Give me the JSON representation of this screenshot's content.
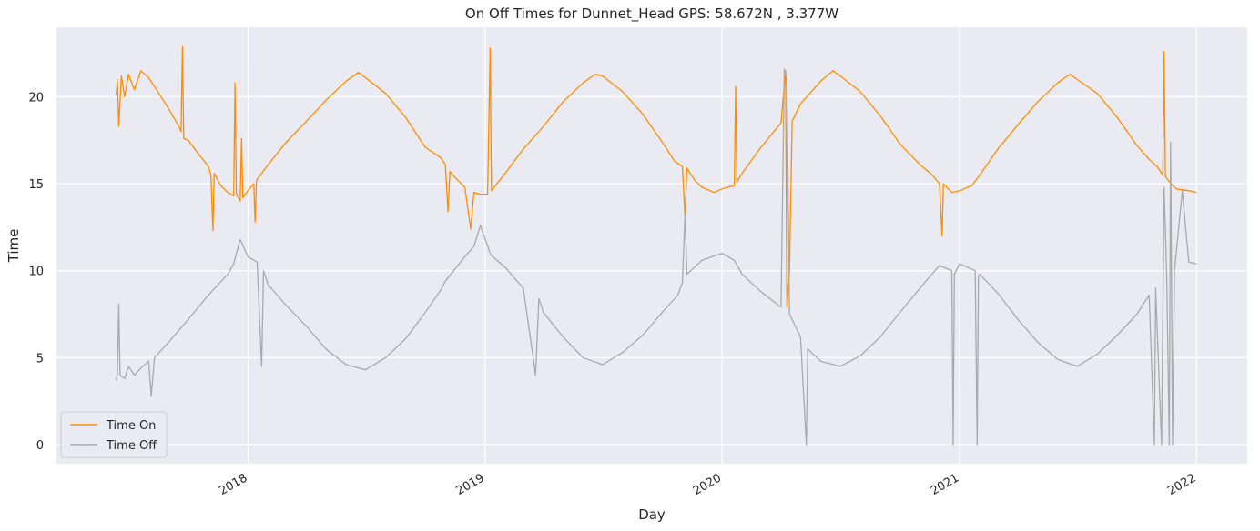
{
  "chart_data": {
    "type": "line",
    "title": "On Off Times for Dunnet_Head  GPS: 58.672N , 3.377W",
    "xlabel": "Day",
    "ylabel": "Time",
    "xlim": [
      "2017-03-12",
      "2022-03-20"
    ],
    "ylim": [
      -1.1,
      24.0
    ],
    "xticks": [
      {
        "date": "2018-01-01",
        "label": "2018"
      },
      {
        "date": "2019-01-01",
        "label": "2019"
      },
      {
        "date": "2020-01-01",
        "label": "2020"
      },
      {
        "date": "2021-01-01",
        "label": "2021"
      },
      {
        "date": "2022-01-01",
        "label": "2022"
      }
    ],
    "yticks": [
      0,
      5,
      10,
      15,
      20
    ],
    "grid": true,
    "legend_position": "bottom-left",
    "colors": {
      "background": "#eaeaf2",
      "grid": "#ffffff"
    },
    "series": [
      {
        "name": "Time On",
        "color": "#ff8c00",
        "points": [
          [
            "2017-06-12",
            20.1
          ],
          [
            "2017-06-14",
            21.0
          ],
          [
            "2017-06-16",
            18.3
          ],
          [
            "2017-06-20",
            21.2
          ],
          [
            "2017-06-25",
            20.0
          ],
          [
            "2017-07-01",
            21.3
          ],
          [
            "2017-07-10",
            20.4
          ],
          [
            "2017-07-20",
            21.5
          ],
          [
            "2017-08-01",
            21.1
          ],
          [
            "2017-08-15",
            20.3
          ],
          [
            "2017-09-01",
            19.3
          ],
          [
            "2017-09-15",
            18.4
          ],
          [
            "2017-09-20",
            18.0
          ],
          [
            "2017-09-22",
            22.9
          ],
          [
            "2017-09-24",
            17.6
          ],
          [
            "2017-10-01",
            17.5
          ],
          [
            "2017-10-15",
            16.8
          ],
          [
            "2017-11-01",
            16.0
          ],
          [
            "2017-11-05",
            15.5
          ],
          [
            "2017-11-08",
            12.3
          ],
          [
            "2017-11-10",
            15.6
          ],
          [
            "2017-11-20",
            14.9
          ],
          [
            "2017-12-01",
            14.5
          ],
          [
            "2017-12-10",
            14.3
          ],
          [
            "2017-12-12",
            20.8
          ],
          [
            "2017-12-14",
            14.4
          ],
          [
            "2017-12-20",
            14.0
          ],
          [
            "2017-12-22",
            17.6
          ],
          [
            "2017-12-24",
            14.2
          ],
          [
            "2018-01-01",
            14.6
          ],
          [
            "2018-01-10",
            15.0
          ],
          [
            "2018-01-12",
            12.8
          ],
          [
            "2018-01-14",
            15.2
          ],
          [
            "2018-02-01",
            16.1
          ],
          [
            "2018-03-01",
            17.4
          ],
          [
            "2018-04-01",
            18.6
          ],
          [
            "2018-05-01",
            19.8
          ],
          [
            "2018-06-01",
            20.9
          ],
          [
            "2018-06-20",
            21.4
          ],
          [
            "2018-07-01",
            21.1
          ],
          [
            "2018-08-01",
            20.2
          ],
          [
            "2018-09-01",
            18.8
          ],
          [
            "2018-10-01",
            17.1
          ],
          [
            "2018-10-25",
            16.5
          ],
          [
            "2018-11-01",
            16.1
          ],
          [
            "2018-11-05",
            13.4
          ],
          [
            "2018-11-08",
            15.7
          ],
          [
            "2018-11-20",
            15.2
          ],
          [
            "2018-12-01",
            14.8
          ],
          [
            "2018-12-10",
            12.4
          ],
          [
            "2018-12-15",
            14.5
          ],
          [
            "2018-12-25",
            14.4
          ],
          [
            "2019-01-05",
            14.4
          ],
          [
            "2019-01-09",
            22.8
          ],
          [
            "2019-01-11",
            14.6
          ],
          [
            "2019-02-01",
            15.6
          ],
          [
            "2019-03-01",
            17.0
          ],
          [
            "2019-04-01",
            18.3
          ],
          [
            "2019-05-01",
            19.7
          ],
          [
            "2019-06-01",
            20.8
          ],
          [
            "2019-06-20",
            21.3
          ],
          [
            "2019-07-01",
            21.2
          ],
          [
            "2019-08-01",
            20.3
          ],
          [
            "2019-09-01",
            19.0
          ],
          [
            "2019-10-01",
            17.4
          ],
          [
            "2019-10-20",
            16.3
          ],
          [
            "2019-11-01",
            16.0
          ],
          [
            "2019-11-05",
            13.1
          ],
          [
            "2019-11-08",
            15.9
          ],
          [
            "2019-11-20",
            15.2
          ],
          [
            "2019-12-01",
            14.8
          ],
          [
            "2019-12-20",
            14.5
          ],
          [
            "2020-01-01",
            14.7
          ],
          [
            "2020-01-20",
            14.9
          ],
          [
            "2020-01-22",
            20.6
          ],
          [
            "2020-01-24",
            15.1
          ],
          [
            "2020-02-01",
            15.6
          ],
          [
            "2020-03-01",
            17.1
          ],
          [
            "2020-04-01",
            18.5
          ],
          [
            "2020-04-08",
            21.5
          ],
          [
            "2020-04-10",
            7.9
          ],
          [
            "2020-04-14",
            10.0
          ],
          [
            "2020-04-18",
            18.6
          ],
          [
            "2020-05-01",
            19.6
          ],
          [
            "2020-06-01",
            20.9
          ],
          [
            "2020-06-20",
            21.5
          ],
          [
            "2020-07-01",
            21.2
          ],
          [
            "2020-08-01",
            20.3
          ],
          [
            "2020-09-01",
            18.9
          ],
          [
            "2020-10-01",
            17.3
          ],
          [
            "2020-11-01",
            16.1
          ],
          [
            "2020-11-20",
            15.5
          ],
          [
            "2020-12-01",
            15.0
          ],
          [
            "2020-12-05",
            12.0
          ],
          [
            "2020-12-07",
            15.0
          ],
          [
            "2020-12-20",
            14.5
          ],
          [
            "2021-01-01",
            14.6
          ],
          [
            "2021-01-20",
            14.9
          ],
          [
            "2021-02-01",
            15.5
          ],
          [
            "2021-03-01",
            17.0
          ],
          [
            "2021-04-01",
            18.4
          ],
          [
            "2021-05-01",
            19.7
          ],
          [
            "2021-06-01",
            20.8
          ],
          [
            "2021-06-20",
            21.3
          ],
          [
            "2021-07-01",
            21.0
          ],
          [
            "2021-08-01",
            20.2
          ],
          [
            "2021-09-01",
            18.8
          ],
          [
            "2021-10-01",
            17.2
          ],
          [
            "2021-10-20",
            16.4
          ],
          [
            "2021-11-01",
            16.0
          ],
          [
            "2021-11-10",
            15.5
          ],
          [
            "2021-11-12",
            22.6
          ],
          [
            "2021-11-14",
            15.4
          ],
          [
            "2021-11-25",
            14.9
          ],
          [
            "2021-12-01",
            14.7
          ],
          [
            "2021-12-20",
            14.6
          ],
          [
            "2022-01-01",
            14.5
          ]
        ]
      },
      {
        "name": "Time Off",
        "color": "#a9a9a9",
        "points": [
          [
            "2017-06-12",
            3.7
          ],
          [
            "2017-06-14",
            4.1
          ],
          [
            "2017-06-16",
            8.1
          ],
          [
            "2017-06-18",
            4.0
          ],
          [
            "2017-06-25",
            3.8
          ],
          [
            "2017-07-01",
            4.5
          ],
          [
            "2017-07-10",
            4.0
          ],
          [
            "2017-07-20",
            4.4
          ],
          [
            "2017-08-01",
            4.8
          ],
          [
            "2017-08-05",
            2.8
          ],
          [
            "2017-08-10",
            5.0
          ],
          [
            "2017-09-01",
            5.9
          ],
          [
            "2017-10-01",
            7.2
          ],
          [
            "2017-11-01",
            8.6
          ],
          [
            "2017-12-01",
            9.8
          ],
          [
            "2017-12-10",
            10.4
          ],
          [
            "2017-12-20",
            11.8
          ],
          [
            "2018-01-01",
            10.8
          ],
          [
            "2018-01-15",
            10.5
          ],
          [
            "2018-01-22",
            4.5
          ],
          [
            "2018-01-25",
            10.0
          ],
          [
            "2018-02-01",
            9.2
          ],
          [
            "2018-03-01",
            8.0
          ],
          [
            "2018-04-01",
            6.8
          ],
          [
            "2018-05-01",
            5.5
          ],
          [
            "2018-06-01",
            4.6
          ],
          [
            "2018-07-01",
            4.3
          ],
          [
            "2018-08-01",
            5.0
          ],
          [
            "2018-09-01",
            6.1
          ],
          [
            "2018-10-01",
            7.6
          ],
          [
            "2018-10-25",
            8.9
          ],
          [
            "2018-11-01",
            9.4
          ],
          [
            "2018-12-01",
            10.8
          ],
          [
            "2018-12-15",
            11.4
          ],
          [
            "2018-12-25",
            12.6
          ],
          [
            "2019-01-10",
            10.9
          ],
          [
            "2019-02-01",
            10.2
          ],
          [
            "2019-03-01",
            9.0
          ],
          [
            "2019-03-20",
            4.0
          ],
          [
            "2019-03-25",
            8.4
          ],
          [
            "2019-04-01",
            7.6
          ],
          [
            "2019-05-01",
            6.2
          ],
          [
            "2019-06-01",
            5.0
          ],
          [
            "2019-07-01",
            4.6
          ],
          [
            "2019-08-01",
            5.3
          ],
          [
            "2019-09-01",
            6.3
          ],
          [
            "2019-10-01",
            7.6
          ],
          [
            "2019-10-25",
            8.6
          ],
          [
            "2019-11-01",
            9.3
          ],
          [
            "2019-11-05",
            13.2
          ],
          [
            "2019-11-08",
            9.8
          ],
          [
            "2019-12-01",
            10.6
          ],
          [
            "2020-01-01",
            11.0
          ],
          [
            "2020-01-20",
            10.6
          ],
          [
            "2020-02-01",
            9.8
          ],
          [
            "2020-03-01",
            8.8
          ],
          [
            "2020-04-01",
            7.9
          ],
          [
            "2020-04-06",
            21.6
          ],
          [
            "2020-04-10",
            21.0
          ],
          [
            "2020-04-14",
            7.5
          ],
          [
            "2020-05-01",
            6.2
          ],
          [
            "2020-05-10",
            0.0
          ],
          [
            "2020-05-12",
            5.5
          ],
          [
            "2020-06-01",
            4.8
          ],
          [
            "2020-07-01",
            4.5
          ],
          [
            "2020-08-01",
            5.1
          ],
          [
            "2020-09-01",
            6.2
          ],
          [
            "2020-10-01",
            7.6
          ],
          [
            "2020-11-01",
            9.0
          ],
          [
            "2020-12-01",
            10.3
          ],
          [
            "2020-12-20",
            10.0
          ],
          [
            "2020-12-22",
            0.0
          ],
          [
            "2020-12-24",
            9.8
          ],
          [
            "2021-01-01",
            10.4
          ],
          [
            "2021-01-25",
            10.0
          ],
          [
            "2021-01-28",
            0.0
          ],
          [
            "2021-01-30",
            9.6
          ],
          [
            "2021-02-01",
            9.8
          ],
          [
            "2021-03-01",
            8.7
          ],
          [
            "2021-04-01",
            7.2
          ],
          [
            "2021-05-01",
            5.9
          ],
          [
            "2021-06-01",
            4.9
          ],
          [
            "2021-07-01",
            4.5
          ],
          [
            "2021-08-01",
            5.2
          ],
          [
            "2021-09-01",
            6.3
          ],
          [
            "2021-10-01",
            7.5
          ],
          [
            "2021-10-20",
            8.6
          ],
          [
            "2021-10-28",
            0.0
          ],
          [
            "2021-10-30",
            9.0
          ],
          [
            "2021-11-08",
            0.0
          ],
          [
            "2021-11-12",
            14.8
          ],
          [
            "2021-11-16",
            9.6
          ],
          [
            "2021-11-20",
            0.0
          ],
          [
            "2021-11-22",
            17.4
          ],
          [
            "2021-11-25",
            0.0
          ],
          [
            "2021-11-28",
            10.0
          ],
          [
            "2021-12-10",
            14.6
          ],
          [
            "2021-12-20",
            10.5
          ],
          [
            "2022-01-01",
            10.4
          ]
        ]
      }
    ]
  }
}
